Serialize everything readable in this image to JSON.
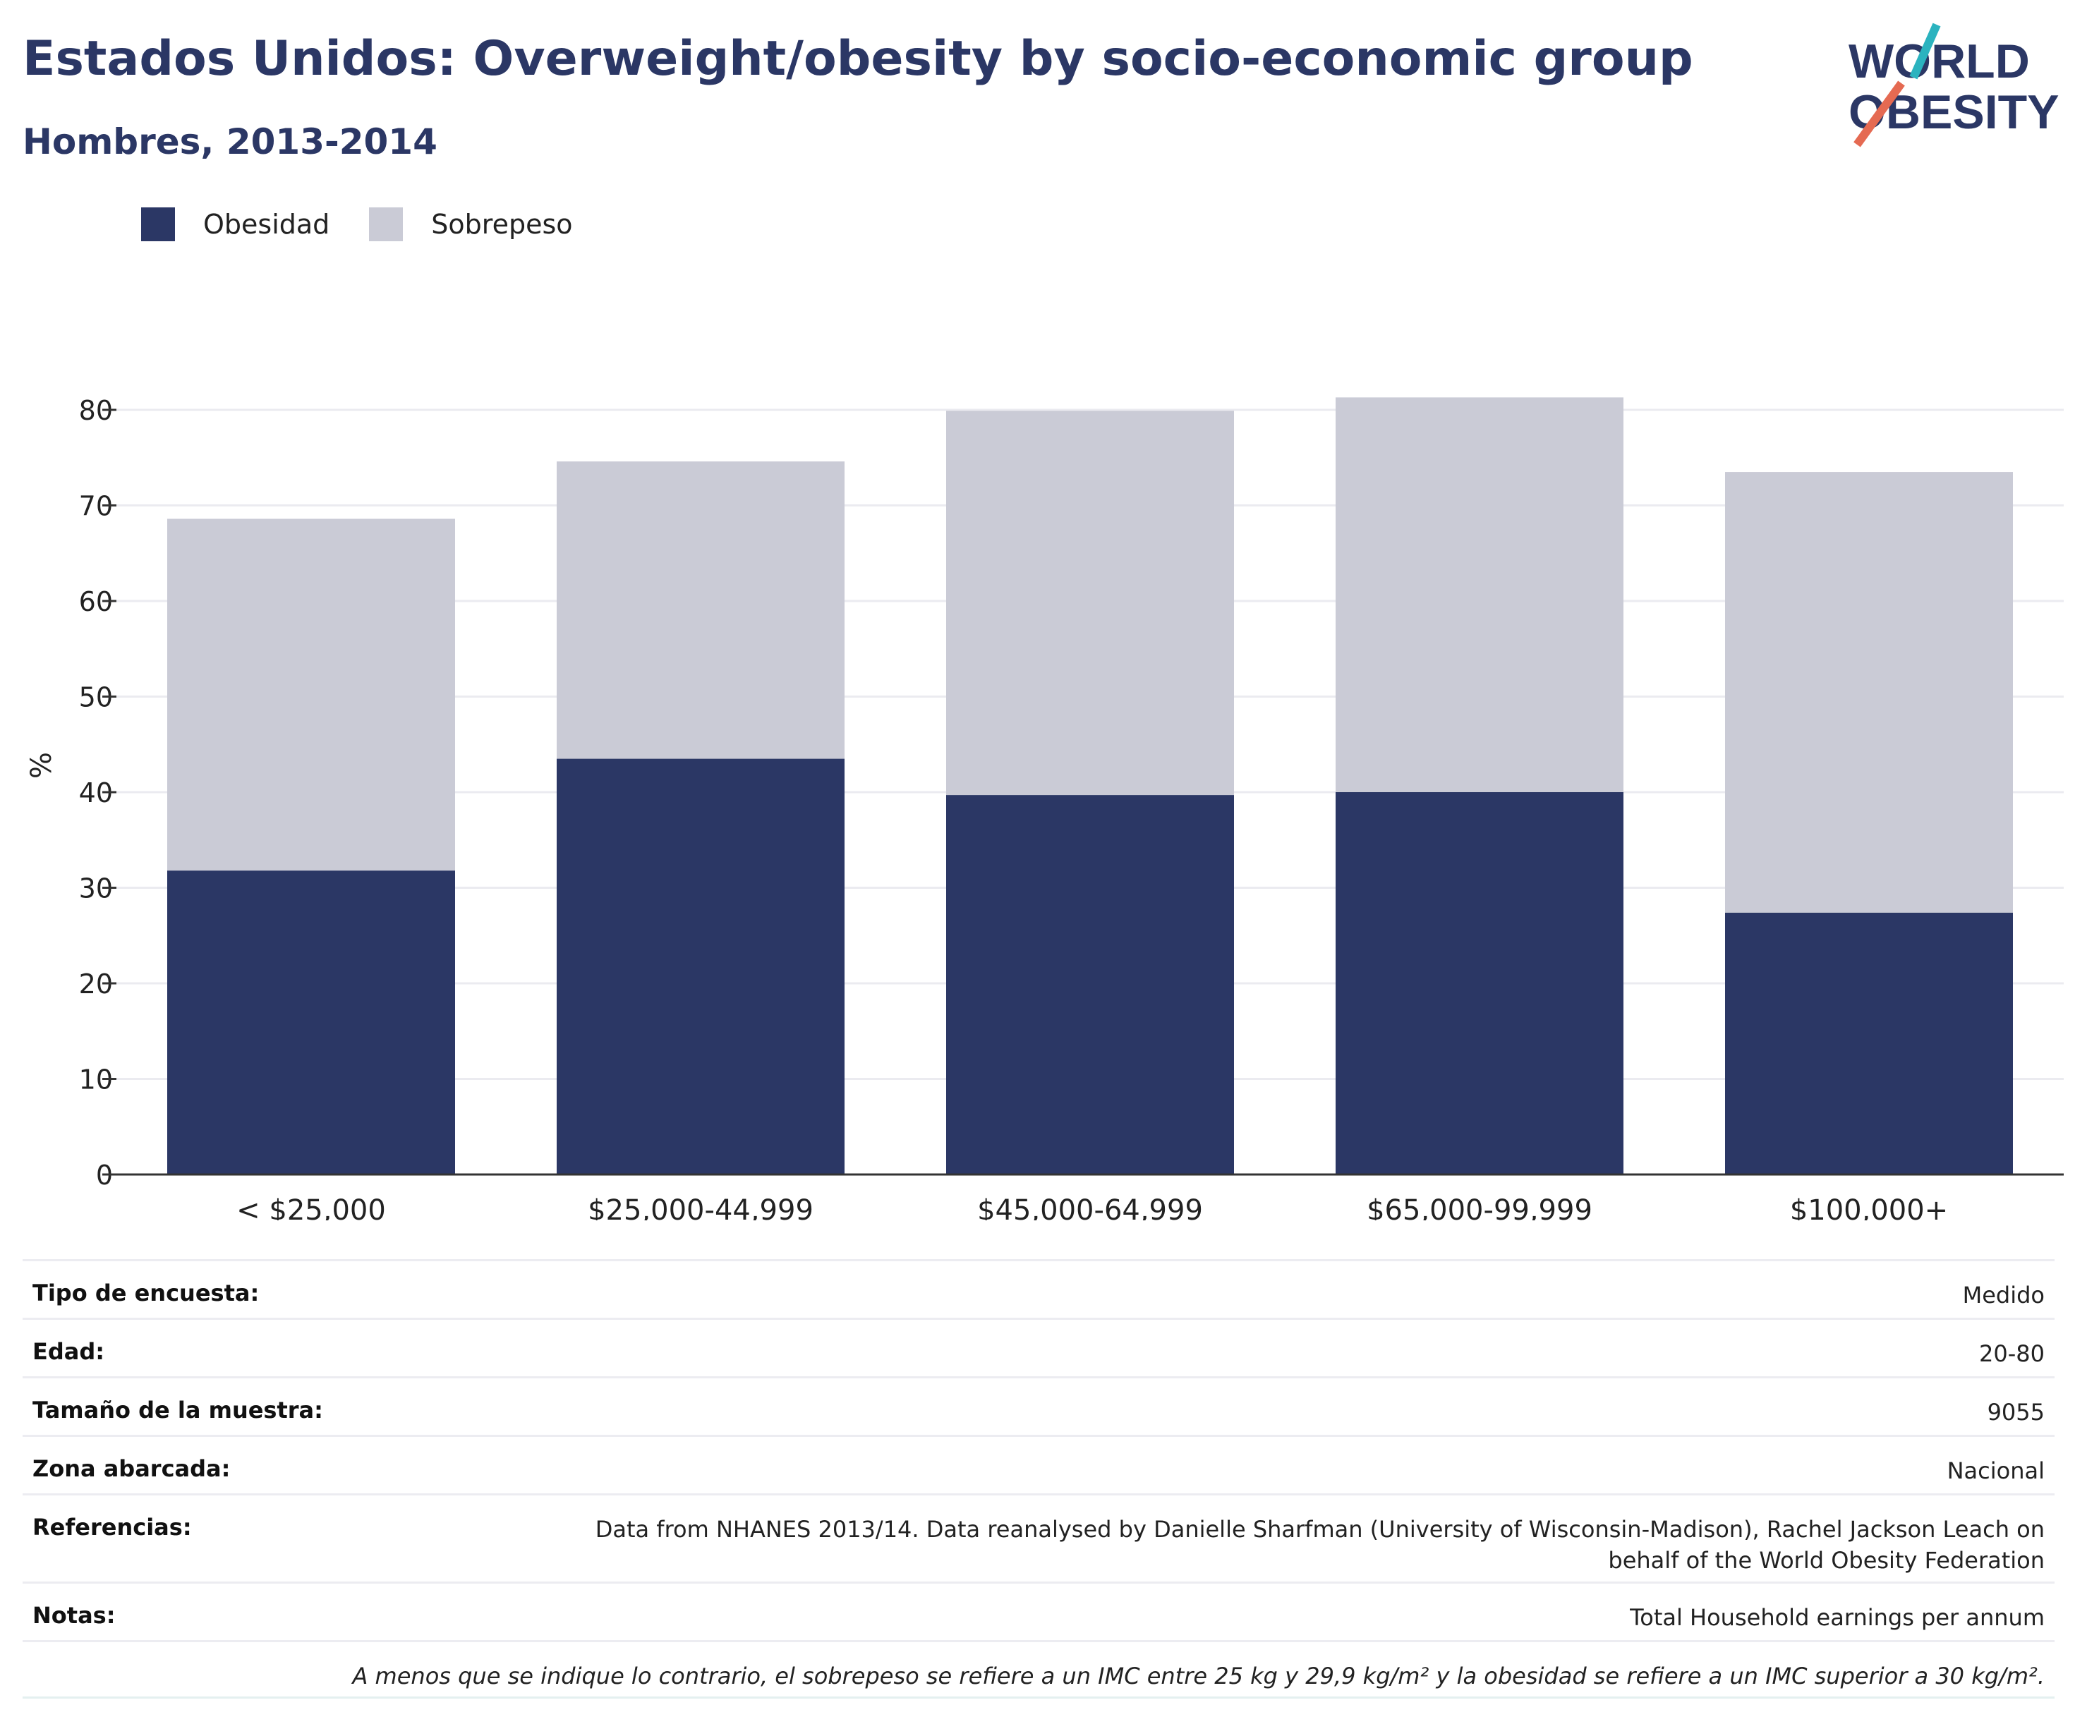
{
  "header": {
    "title": "Estados Unidos: Overweight/obesity by socio-economic group",
    "subtitle": "Hombres, 2013-2014"
  },
  "logo": {
    "line1": "WORLD",
    "line2": "OBESITY"
  },
  "colors": {
    "obesity": "#2b3765",
    "overweight": "#cacbd6",
    "title": "#2b3765",
    "grid": "#ebebf0",
    "axis": "#333333"
  },
  "chart_data": {
    "type": "bar",
    "stacked": true,
    "categories": [
      "< $25,000",
      "$25,000-44,999",
      "$45,000-64,999",
      "$65,000-99,999",
      "$100,000+"
    ],
    "series": [
      {
        "name": "Obesidad",
        "color": "#2b3765",
        "values": [
          31.8,
          43.5,
          39.7,
          40.0,
          27.4
        ]
      },
      {
        "name": "Sobrepeso",
        "color": "#cacbd6",
        "values": [
          36.8,
          31.1,
          40.2,
          41.3,
          46.1
        ]
      }
    ],
    "ylabel": "%",
    "ylim": [
      0,
      85
    ],
    "yticks": [
      0,
      10,
      20,
      30,
      40,
      50,
      60,
      70,
      80
    ],
    "grid": true,
    "legend_position": "top-left"
  },
  "info": [
    {
      "key": "Tipo de encuesta:",
      "value": "Medido"
    },
    {
      "key": "Edad:",
      "value": "20-80"
    },
    {
      "key": "Tamaño de la muestra:",
      "value": "9055"
    },
    {
      "key": "Zona abarcada:",
      "value": "Nacional"
    },
    {
      "key": "Referencias:",
      "value": "Data from NHANES 2013/14. Data reanalysed by Danielle Sharfman (University of Wisconsin-Madison), Rachel Jackson Leach on behalf of the World Obesity Federation"
    },
    {
      "key": "Notas:",
      "value": "Total Household earnings per annum"
    }
  ],
  "footnote": "A menos que se indique lo contrario, el sobrepeso se refiere a un IMC entre 25 kg y 29,9 kg/m² y la obesidad se refiere a un IMC superior a 30 kg/m²."
}
